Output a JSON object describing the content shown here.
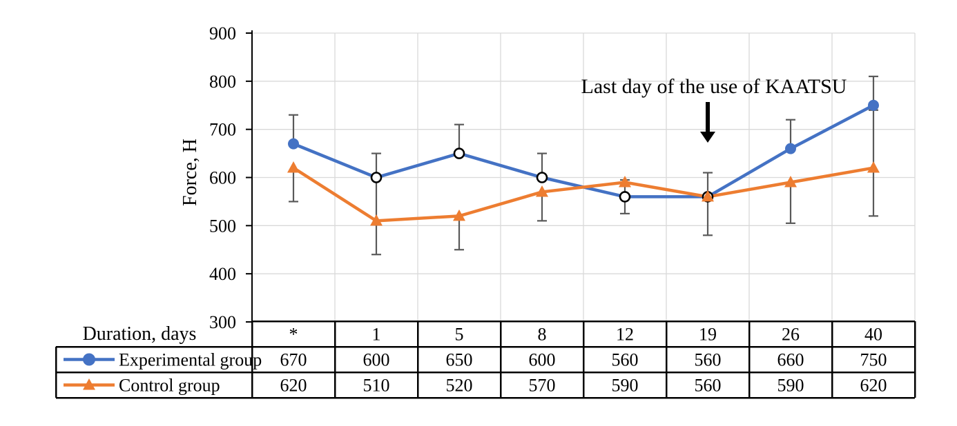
{
  "chart_data": {
    "type": "line",
    "title": "",
    "ylabel": "Force, H",
    "xlabel": "Duration, days",
    "ylim": [
      300,
      900
    ],
    "y_ticks": [
      900,
      800,
      700,
      600,
      500,
      400,
      300
    ],
    "grid": true,
    "gridline_color": "#d9d9d9",
    "error_bar_color": "#595959",
    "axis_color": "#000000",
    "background_color": "#ffffff",
    "categories": [
      "*",
      "1",
      "5",
      "8",
      "12",
      "19",
      "26",
      "40"
    ],
    "series": [
      {
        "name": "Experimental group",
        "color": "#4472C4",
        "marker": "circle",
        "values": [
          670,
          600,
          650,
          600,
          560,
          560,
          660,
          750
        ],
        "open_marker": [
          false,
          true,
          true,
          true,
          true,
          true,
          false,
          false
        ],
        "err_upper": [
          60,
          50,
          60,
          50,
          35,
          50,
          60,
          60
        ],
        "err_lower": [
          0,
          0,
          0,
          0,
          35,
          80,
          0,
          0
        ]
      },
      {
        "name": "Control group",
        "color": "#ED7D31",
        "marker": "triangle",
        "values": [
          620,
          510,
          520,
          570,
          590,
          560,
          590,
          620
        ],
        "open_marker": [
          false,
          false,
          false,
          false,
          false,
          false,
          false,
          false
        ],
        "err_upper": [
          0,
          90,
          0,
          0,
          0,
          0,
          0,
          120
        ],
        "err_lower": [
          70,
          70,
          70,
          60,
          0,
          0,
          85,
          100
        ]
      }
    ],
    "annotation": {
      "text": "Last day of the use of KAATSU",
      "arrow_category": "19"
    },
    "legend_position": "table-left"
  }
}
